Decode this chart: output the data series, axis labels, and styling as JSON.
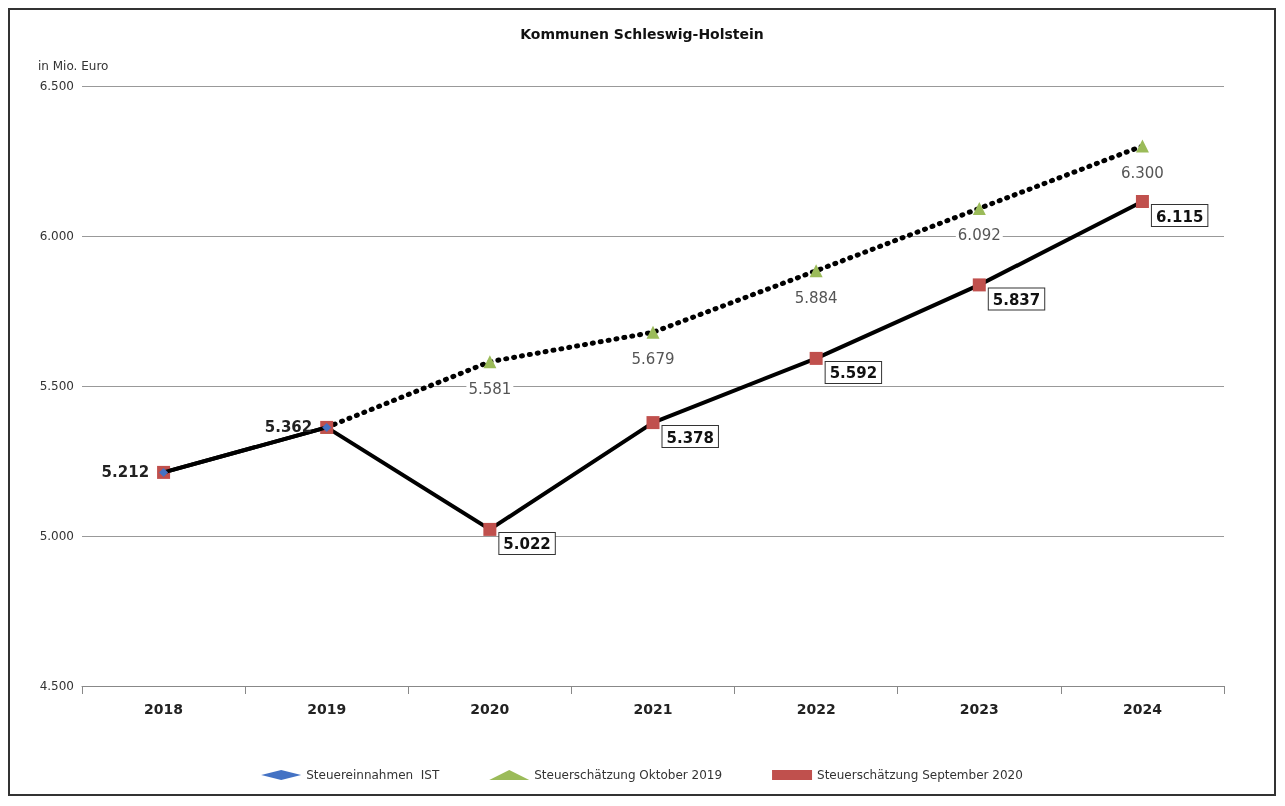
{
  "chart_data": {
    "type": "line",
    "title": "Kommunen Schleswig-Holstein",
    "ylabel": "in Mio. Euro",
    "categories": [
      "2018",
      "2019",
      "2020",
      "2021",
      "2022",
      "2023",
      "2024"
    ],
    "series": [
      {
        "name": "Steuereinnahmen  IST",
        "color": "#4472c4",
        "marker": "diamond",
        "line_style": "solid",
        "values": [
          5212,
          5362,
          null,
          null,
          null,
          null,
          null
        ],
        "value_labels": [
          "5.212",
          "5.362",
          null,
          null,
          null,
          null,
          null
        ]
      },
      {
        "name": "Steuerschätzung Oktober 2019",
        "color": "#9bbb59",
        "marker": "triangle",
        "line_style": "dotted",
        "values": [
          null,
          5362,
          5581,
          5679,
          5884,
          6092,
          6300
        ],
        "value_labels": [
          null,
          null,
          "5.581",
          "5.679",
          "5.884",
          "6.092",
          "6.300"
        ]
      },
      {
        "name": "Steuerschätzung September 2020",
        "color": "#c0504d",
        "marker": "square",
        "line_style": "solid",
        "values": [
          5212,
          5362,
          5022,
          5378,
          5592,
          5837,
          6115
        ],
        "value_labels": [
          null,
          null,
          "5.022",
          "5.378",
          "5.592",
          "5.837",
          "6.115"
        ]
      }
    ],
    "ylim": [
      4500,
      6500
    ],
    "yticks": [
      {
        "value": 4500,
        "label": "4.500"
      },
      {
        "value": 5000,
        "label": "5.000"
      },
      {
        "value": 5500,
        "label": "5.500"
      },
      {
        "value": 6000,
        "label": "6.000"
      },
      {
        "value": 6500,
        "label": "6.500"
      }
    ],
    "grid": "y",
    "legend": "bottom"
  }
}
